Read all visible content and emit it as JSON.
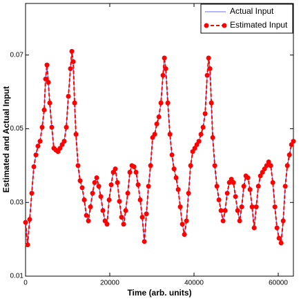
{
  "chart_data": {
    "type": "line",
    "xlabel": "Time (arb. units)",
    "ylabel": "Estimated and Actual Input",
    "x": [
      0,
      492,
      984,
      1476,
      1968,
      2460,
      2952,
      3444,
      3936,
      4428,
      4756,
      5084,
      5412,
      5740,
      6232,
      6724,
      7216,
      7708,
      8200,
      8692,
      9184,
      9676,
      10168,
      10660,
      10988,
      11316,
      11644,
      11972,
      12464,
      12956,
      13448,
      13940,
      14432,
      14924,
      15416,
      15908,
      16400,
      16892,
      17384,
      17876,
      18368,
      18860,
      19352,
      19844,
      20336,
      20828,
      21320,
      21812,
      22304,
      22796,
      23288,
      23780,
      24272,
      24764,
      25256,
      25748,
      26240,
      26732,
      27224,
      27716,
      28208,
      28700,
      29192,
      29684,
      30176,
      30668,
      31160,
      31652,
      32144,
      32636,
      32964,
      33292,
      33784,
      34276,
      34768,
      35260,
      35752,
      36244,
      36736,
      37228,
      37720,
      38212,
      38704,
      39196,
      39688,
      40180,
      40672,
      41164,
      41656,
      42148,
      42640,
      43132,
      43460,
      43788,
      44116,
      44444,
      44936,
      45428,
      45920,
      46412,
      46904,
      47396,
      47888,
      48380,
      48872,
      49364,
      49856,
      50348,
      50840,
      51332,
      51824,
      52316,
      52808,
      53300,
      53792,
      54284,
      54776,
      55268,
      55760,
      56252,
      56744,
      57236,
      57728,
      58220,
      58712,
      59204,
      59696,
      60188,
      60680,
      61172,
      61664,
      62156,
      62648,
      63140,
      63600
    ],
    "series": [
      {
        "name": "Actual Input",
        "color": "#3a3aff",
        "values": [
          0.0246,
          0.0185,
          0.0254,
          0.0325,
          0.0397,
          0.0429,
          0.0453,
          0.0466,
          0.0504,
          0.0551,
          0.0635,
          0.0673,
          0.0626,
          0.057,
          0.0504,
          0.0447,
          0.0442,
          0.0438,
          0.0447,
          0.0457,
          0.0466,
          0.0504,
          0.0588,
          0.0663,
          0.071,
          0.0682,
          0.057,
          0.0485,
          0.04,
          0.0359,
          0.034,
          0.0307,
          0.0265,
          0.025,
          0.0288,
          0.0325,
          0.0354,
          0.0367,
          0.0344,
          0.0316,
          0.0278,
          0.025,
          0.0241,
          0.0307,
          0.0348,
          0.0382,
          0.0391,
          0.0354,
          0.0303,
          0.026,
          0.0241,
          0.0278,
          0.0325,
          0.0382,
          0.04,
          0.0397,
          0.0382,
          0.0348,
          0.0307,
          0.026,
          0.0194,
          0.0269,
          0.0344,
          0.04,
          0.0476,
          0.0485,
          0.0513,
          0.0532,
          0.057,
          0.0645,
          0.0692,
          0.0663,
          0.057,
          0.0485,
          0.0429,
          0.0391,
          0.0367,
          0.0335,
          0.0288,
          0.0241,
          0.0213,
          0.025,
          0.0325,
          0.04,
          0.0438,
          0.0447,
          0.0457,
          0.0466,
          0.0485,
          0.0504,
          0.0541,
          0.0645,
          0.0692,
          0.0663,
          0.057,
          0.0476,
          0.04,
          0.0344,
          0.0307,
          0.0278,
          0.025,
          0.0278,
          0.0325,
          0.0354,
          0.0363,
          0.0354,
          0.0316,
          0.0278,
          0.025,
          0.0288,
          0.0344,
          0.0372,
          0.0367,
          0.0335,
          0.0288,
          0.0231,
          0.0288,
          0.0344,
          0.0372,
          0.0382,
          0.0391,
          0.04,
          0.041,
          0.04,
          0.0354,
          0.0288,
          0.0231,
          0.0203,
          0.019,
          0.025,
          0.0344,
          0.04,
          0.0429,
          0.0457,
          0.0466
        ]
      },
      {
        "name": "Estimated Input",
        "color": "#ff0000",
        "values": [
          0.0246,
          0.0185,
          0.0254,
          0.0325,
          0.0397,
          0.0429,
          0.0453,
          0.0466,
          0.0504,
          0.0551,
          0.0635,
          0.0673,
          0.0626,
          0.057,
          0.0504,
          0.0447,
          0.0442,
          0.0438,
          0.0447,
          0.0457,
          0.0466,
          0.0504,
          0.0588,
          0.0663,
          0.071,
          0.0682,
          0.057,
          0.0485,
          0.04,
          0.0359,
          0.034,
          0.0307,
          0.0265,
          0.025,
          0.0288,
          0.0325,
          0.0354,
          0.0367,
          0.0344,
          0.0316,
          0.0278,
          0.025,
          0.0241,
          0.0307,
          0.0348,
          0.0382,
          0.0391,
          0.0354,
          0.0303,
          0.026,
          0.0241,
          0.0278,
          0.0325,
          0.0382,
          0.04,
          0.0397,
          0.0382,
          0.0348,
          0.0307,
          0.026,
          0.0194,
          0.0269,
          0.0344,
          0.04,
          0.0476,
          0.0485,
          0.0513,
          0.0532,
          0.057,
          0.0645,
          0.0692,
          0.0663,
          0.057,
          0.0485,
          0.0429,
          0.0391,
          0.0367,
          0.0335,
          0.0288,
          0.0241,
          0.0213,
          0.025,
          0.0325,
          0.04,
          0.0438,
          0.0447,
          0.0457,
          0.0466,
          0.0485,
          0.0504,
          0.0541,
          0.0645,
          0.0692,
          0.0663,
          0.057,
          0.0476,
          0.04,
          0.0344,
          0.0307,
          0.0278,
          0.025,
          0.0278,
          0.0325,
          0.0354,
          0.0363,
          0.0354,
          0.0316,
          0.0278,
          0.025,
          0.0288,
          0.0344,
          0.0372,
          0.0367,
          0.0335,
          0.0288,
          0.0231,
          0.0288,
          0.0344,
          0.0372,
          0.0382,
          0.0391,
          0.04,
          0.041,
          0.04,
          0.0354,
          0.0288,
          0.0231,
          0.0203,
          0.019,
          0.025,
          0.0344,
          0.04,
          0.0429,
          0.0457,
          0.0466
        ]
      }
    ],
    "xlim": [
      0,
      63600
    ],
    "xticks": [
      0,
      20000,
      40000,
      60000
    ],
    "ylim": [
      0.01,
      0.084
    ],
    "yticks": [
      0.01,
      0.03,
      0.05,
      0.07
    ],
    "legend": "upper right",
    "grid": false
  }
}
